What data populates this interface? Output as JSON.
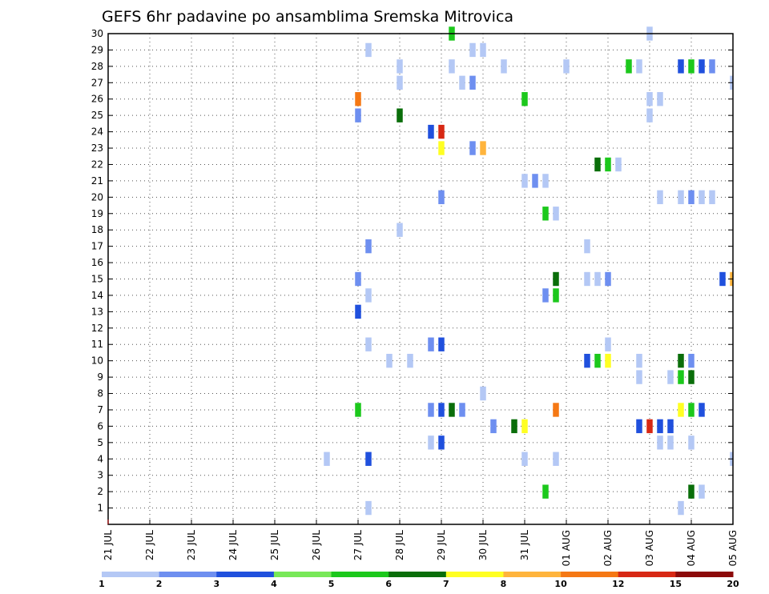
{
  "chart_data": {
    "type": "heatmap",
    "title": "GEFS 6hr padavine po ansamblima Sremska Mitrovica",
    "y_ticks": [
      "1",
      "2",
      "3",
      "4",
      "5",
      "6",
      "7",
      "8",
      "9",
      "10",
      "11",
      "12",
      "13",
      "14",
      "15",
      "16",
      "17",
      "18",
      "19",
      "20",
      "21",
      "22",
      "23",
      "24",
      "25",
      "26",
      "27",
      "28",
      "29",
      "30"
    ],
    "x_ticks": [
      "21 JUL",
      "22 JUL",
      "23 JUL",
      "24 JUL",
      "25 JUL",
      "26 JUL",
      "27 JUL",
      "28 JUL",
      "29 JUL",
      "30 JUL",
      "31 JUL",
      "01 AUG",
      "02 AUG",
      "03 AUG",
      "04 AUG",
      "05 AUG"
    ],
    "y_range": [
      0,
      30
    ],
    "x_range": [
      0,
      15
    ],
    "grid": true,
    "colorbar": {
      "ticks": [
        "1",
        "2",
        "3",
        "4",
        "5",
        "6",
        "7",
        "8",
        "10",
        "12",
        "15",
        "20"
      ],
      "colors": [
        "#b4c8f5",
        "#6e8ff0",
        "#2050dd",
        "#78e858",
        "#1cc81c",
        "#0a6e0a",
        "#ffff22",
        "#ffb43c",
        "#f57814",
        "#d72814",
        "#8c0a0a"
      ]
    },
    "cells": [
      [
        8.25,
        30,
        5
      ],
      [
        13.0,
        30,
        1
      ],
      [
        6.25,
        29,
        1
      ],
      [
        8.75,
        29,
        1
      ],
      [
        9.0,
        29,
        1
      ],
      [
        7.0,
        28,
        1
      ],
      [
        8.25,
        28,
        1
      ],
      [
        9.5,
        28,
        1
      ],
      [
        11.0,
        28,
        1
      ],
      [
        12.5,
        28,
        5
      ],
      [
        12.75,
        28,
        1
      ],
      [
        13.75,
        28,
        3
      ],
      [
        14.0,
        28,
        5
      ],
      [
        14.25,
        28,
        3
      ],
      [
        14.5,
        28,
        2
      ],
      [
        7.0,
        27,
        1
      ],
      [
        8.5,
        27,
        1
      ],
      [
        8.75,
        27,
        2
      ],
      [
        15.0,
        27,
        1
      ],
      [
        6.0,
        26,
        9
      ],
      [
        10.0,
        26,
        5
      ],
      [
        13.0,
        26,
        1
      ],
      [
        13.25,
        26,
        1
      ],
      [
        6.0,
        25,
        2
      ],
      [
        7.0,
        25,
        6
      ],
      [
        13.0,
        25,
        1
      ],
      [
        7.75,
        24,
        3
      ],
      [
        8.0,
        24,
        10
      ],
      [
        8.0,
        23,
        7
      ],
      [
        8.75,
        23,
        2
      ],
      [
        9.0,
        23,
        8
      ],
      [
        11.75,
        22,
        6
      ],
      [
        12.0,
        22,
        5
      ],
      [
        12.25,
        22,
        1
      ],
      [
        10.0,
        21,
        1
      ],
      [
        10.25,
        21,
        2
      ],
      [
        10.5,
        21,
        1
      ],
      [
        8.0,
        20,
        2
      ],
      [
        13.25,
        20,
        1
      ],
      [
        13.75,
        20,
        1
      ],
      [
        14.0,
        20,
        2
      ],
      [
        14.25,
        20,
        1
      ],
      [
        14.5,
        20,
        1
      ],
      [
        10.5,
        19,
        5
      ],
      [
        10.75,
        19,
        1
      ],
      [
        7.0,
        18,
        1
      ],
      [
        6.25,
        17,
        2
      ],
      [
        11.5,
        17,
        1
      ],
      [
        10.75,
        15,
        6
      ],
      [
        11.5,
        15,
        1
      ],
      [
        11.75,
        15,
        1
      ],
      [
        12.0,
        15,
        2
      ],
      [
        14.75,
        15,
        3
      ],
      [
        15.0,
        15,
        8
      ],
      [
        6.0,
        15,
        2
      ],
      [
        6.25,
        14,
        1
      ],
      [
        10.5,
        14,
        2
      ],
      [
        10.75,
        14,
        5
      ],
      [
        6.0,
        13,
        3
      ],
      [
        6.25,
        11,
        1
      ],
      [
        7.75,
        11,
        2
      ],
      [
        8.0,
        11,
        3
      ],
      [
        12.0,
        11,
        1
      ],
      [
        6.75,
        10,
        1
      ],
      [
        7.25,
        10,
        1
      ],
      [
        11.5,
        10,
        3
      ],
      [
        11.75,
        10,
        5
      ],
      [
        12.0,
        10,
        7
      ],
      [
        12.75,
        10,
        1
      ],
      [
        13.75,
        10,
        6
      ],
      [
        14.0,
        10,
        2
      ],
      [
        12.75,
        9,
        1
      ],
      [
        13.5,
        9,
        1
      ],
      [
        13.75,
        9,
        5
      ],
      [
        14.0,
        9,
        6
      ],
      [
        9.0,
        8,
        1
      ],
      [
        6.0,
        7,
        5
      ],
      [
        7.75,
        7,
        2
      ],
      [
        8.0,
        7,
        3
      ],
      [
        8.25,
        7,
        6
      ],
      [
        8.5,
        7,
        2
      ],
      [
        10.75,
        7,
        9
      ],
      [
        13.75,
        7,
        7
      ],
      [
        14.0,
        7,
        5
      ],
      [
        14.25,
        7,
        3
      ],
      [
        9.25,
        6,
        2
      ],
      [
        9.75,
        6,
        6
      ],
      [
        10.0,
        6,
        7
      ],
      [
        12.75,
        6,
        3
      ],
      [
        13.0,
        6,
        10
      ],
      [
        13.25,
        6,
        3
      ],
      [
        13.5,
        6,
        3
      ],
      [
        7.75,
        5,
        1
      ],
      [
        8.0,
        5,
        3
      ],
      [
        13.25,
        5,
        1
      ],
      [
        13.5,
        5,
        1
      ],
      [
        14.0,
        5,
        1
      ],
      [
        5.25,
        4,
        1
      ],
      [
        6.25,
        4,
        3
      ],
      [
        10.0,
        4,
        1
      ],
      [
        10.75,
        4,
        1
      ],
      [
        15.0,
        4,
        1
      ],
      [
        10.5,
        2,
        5
      ],
      [
        14.0,
        2,
        6
      ],
      [
        14.25,
        2,
        1
      ],
      [
        6.25,
        1,
        1
      ],
      [
        13.75,
        1,
        1
      ]
    ]
  }
}
